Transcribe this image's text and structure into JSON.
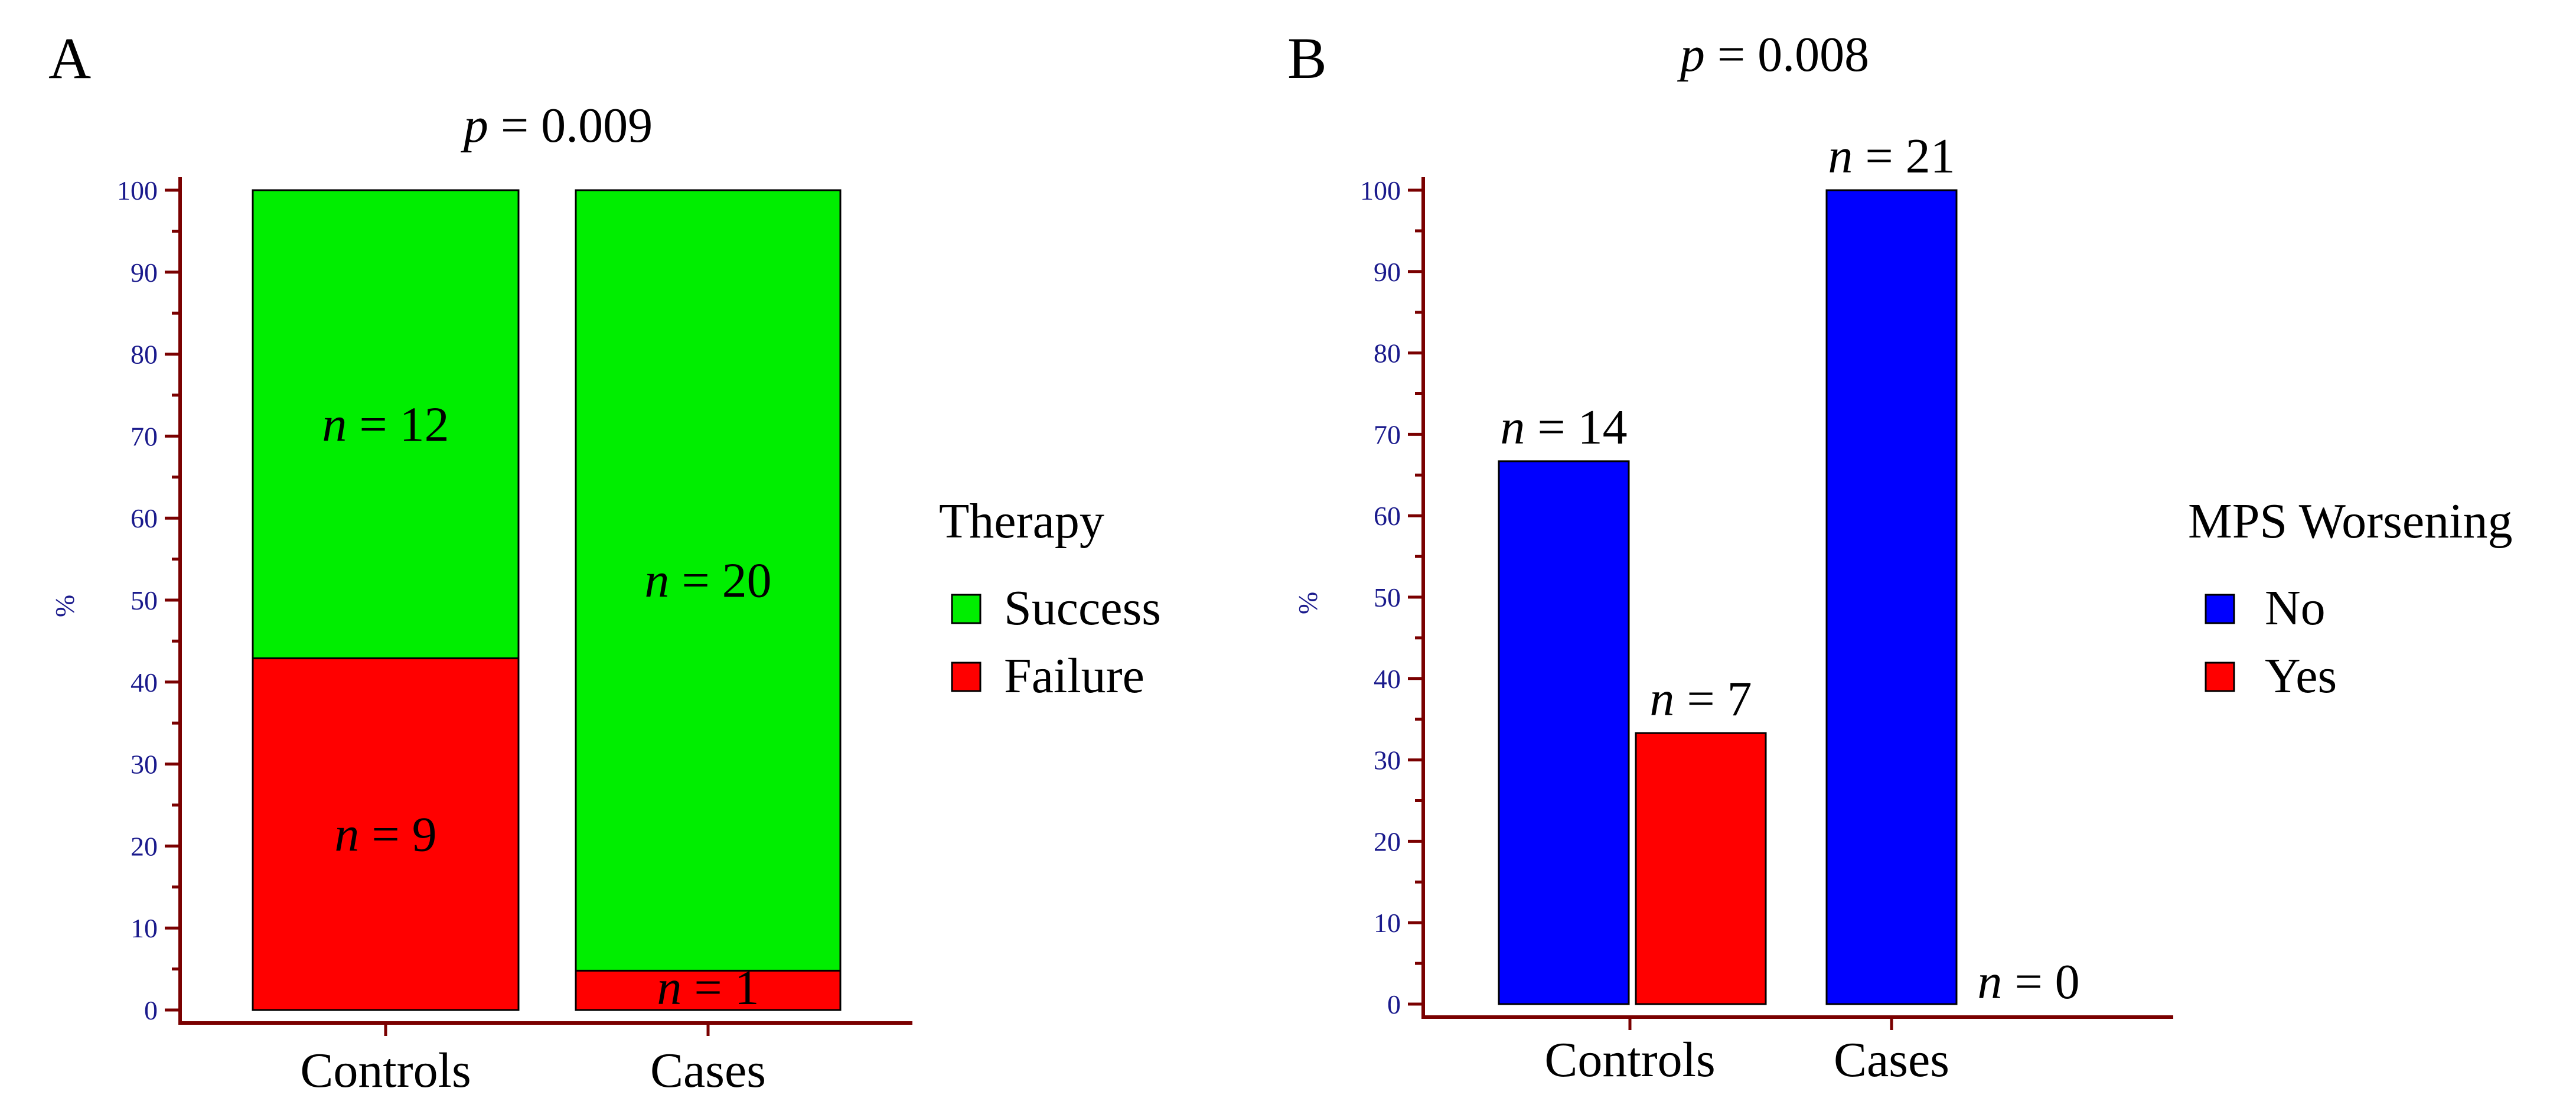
{
  "chart_data": [
    {
      "id": "A",
      "type": "bar",
      "stacked": true,
      "panel_label": "A",
      "p_value": {
        "prefix": "p",
        "eq": " = ",
        "value": "0.009"
      },
      "ylabel": "%",
      "ylim": [
        0,
        100
      ],
      "yticks": [
        0,
        10,
        20,
        30,
        40,
        50,
        60,
        70,
        80,
        90,
        100
      ],
      "categories": [
        "Controls",
        "Cases"
      ],
      "legend_title": "Therapy",
      "series": [
        {
          "name": "Success",
          "color": "#00ee00",
          "values": [
            57.1,
            95.2
          ],
          "counts": [
            "12",
            "20"
          ]
        },
        {
          "name": "Failure",
          "color": "#ff0000",
          "values": [
            42.9,
            4.8
          ],
          "counts": [
            "9",
            "1"
          ]
        }
      ]
    },
    {
      "id": "B",
      "type": "bar",
      "stacked": false,
      "panel_label": "B",
      "p_value": {
        "prefix": "p",
        "eq": " = ",
        "value": "0.008"
      },
      "ylabel": "%",
      "ylim": [
        0,
        100
      ],
      "yticks": [
        0,
        10,
        20,
        30,
        40,
        50,
        60,
        70,
        80,
        90,
        100
      ],
      "categories": [
        "Controls",
        "Cases"
      ],
      "legend_title": "MPS Worsening",
      "series": [
        {
          "name": "No",
          "color": "#0000ff",
          "values": [
            66.7,
            100
          ],
          "counts": [
            "14",
            "21"
          ]
        },
        {
          "name": "Yes",
          "color": "#ff0000",
          "values": [
            33.3,
            0
          ],
          "counts": [
            "7",
            "0"
          ]
        }
      ]
    }
  ]
}
